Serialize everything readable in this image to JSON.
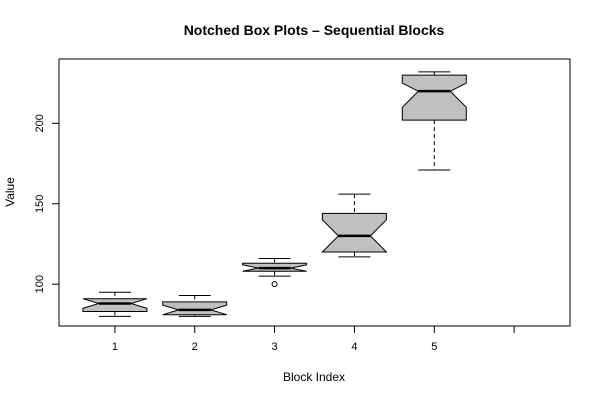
{
  "chart_data": {
    "type": "boxplot",
    "notched": true,
    "title": "Notched Box Plots – Sequential Blocks",
    "xlabel": "Block Index",
    "ylabel": "Value",
    "x_ticks": [
      "1",
      "2",
      "3",
      "4",
      "5",
      ""
    ],
    "y_ticks": [
      "100",
      "150",
      "200"
    ],
    "y_tick_values": [
      100,
      150,
      200
    ],
    "ylim": [
      74,
      240
    ],
    "xlim": [
      0.3,
      6.7
    ],
    "box_fill": "#c0c0c0",
    "boxes": [
      {
        "label": "1",
        "whisker_low": 80,
        "q1": 83,
        "median": 88,
        "q3": 91,
        "whisker_high": 95,
        "notch_low": 85,
        "notch_high": 91,
        "outliers": []
      },
      {
        "label": "2",
        "whisker_low": 80,
        "q1": 81,
        "median": 84,
        "q3": 89,
        "whisker_high": 93,
        "notch_low": 81,
        "notch_high": 87,
        "outliers": []
      },
      {
        "label": "3",
        "whisker_low": 105,
        "q1": 108,
        "median": 110,
        "q3": 113,
        "whisker_high": 116,
        "notch_low": 108,
        "notch_high": 112,
        "outliers": [
          100
        ]
      },
      {
        "label": "4",
        "whisker_low": 117,
        "q1": 120,
        "median": 130,
        "q3": 144,
        "whisker_high": 156,
        "notch_low": 120,
        "notch_high": 140,
        "outliers": []
      },
      {
        "label": "5",
        "whisker_low": 171,
        "q1": 202,
        "median": 220,
        "q3": 230,
        "whisker_high": 232,
        "notch_low": 210,
        "notch_high": 225,
        "outliers": []
      }
    ]
  }
}
